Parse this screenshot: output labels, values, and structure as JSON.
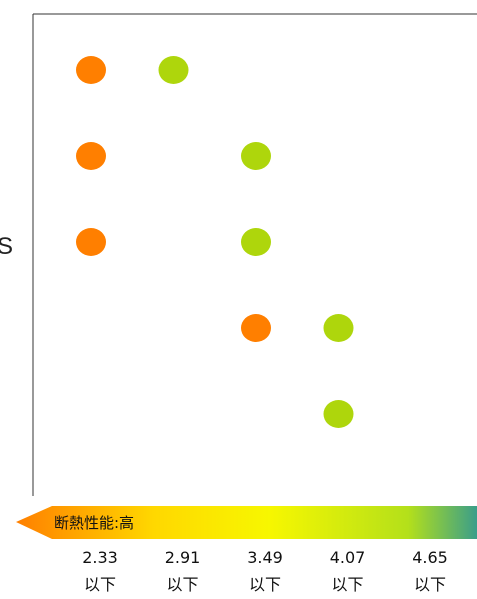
{
  "chart_data": {
    "type": "scatter",
    "x_categories": [
      "2.33 以下",
      "2.91 以下",
      "3.49 以下",
      "4.07 以下",
      "4.65 以下"
    ],
    "rows": 5,
    "series": [
      {
        "color": "#ff7f00",
        "points": [
          {
            "x": "2.33 以下",
            "row": 1
          },
          {
            "x": "2.33 以下",
            "row": 2
          },
          {
            "x": "2.33 以下",
            "row": 3
          },
          {
            "x": "3.49 以下",
            "row": 4
          }
        ]
      },
      {
        "color": "#aed60c",
        "points": [
          {
            "x": "2.91 以下",
            "row": 1
          },
          {
            "x": "3.49 以下",
            "row": 2
          },
          {
            "x": "3.49 以下",
            "row": 3
          },
          {
            "x": "4.07 以下",
            "row": 4
          },
          {
            "x": "4.07 以下",
            "row": 5
          }
        ]
      }
    ],
    "scale": {
      "arrow_label": "断熱性能:高",
      "ticks": [
        {
          "value": "2.33",
          "suffix": "以下"
        },
        {
          "value": "2.91",
          "suffix": "以下"
        },
        {
          "value": "3.49",
          "suffix": "以下"
        },
        {
          "value": "4.07",
          "suffix": "以下"
        },
        {
          "value": "4.65",
          "suffix": "以下"
        }
      ],
      "gradient_colors": [
        "#ff7f00",
        "#ffd800",
        "#f7f700",
        "#b4e01a",
        "#3a9e8a"
      ]
    },
    "grid": false
  },
  "side_text": "S"
}
